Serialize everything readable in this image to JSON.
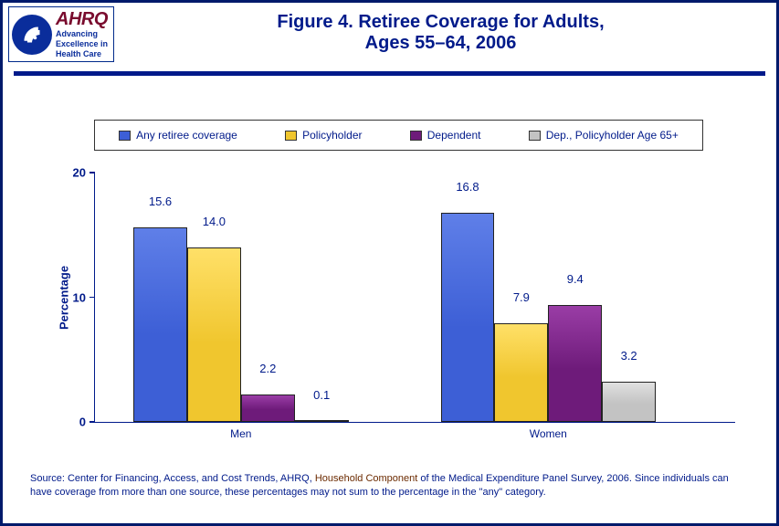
{
  "title": {
    "line1": "Figure 4. Retiree Coverage for Adults,",
    "line2": "Ages 55–64, 2006"
  },
  "logo": {
    "ahrq": "AHRQ",
    "sub1": "Advancing",
    "sub2": "Excellence in",
    "sub3": "Health Care"
  },
  "chart": {
    "type": "bar-grouped",
    "y_axis": {
      "title": "Percentage",
      "min": 0,
      "max": 20,
      "tick_step": 10,
      "ticks": [
        0,
        10,
        20
      ]
    },
    "categories": [
      "Men",
      "Women"
    ],
    "series": [
      {
        "name": "Any retiree coverage",
        "color": "#3d5fd6",
        "grad_top": "#5f7fe8",
        "values": [
          15.6,
          16.8
        ]
      },
      {
        "name": "Policyholder",
        "color": "#f0c62e",
        "grad_top": "#ffe068",
        "values": [
          14.0,
          7.9
        ]
      },
      {
        "name": "Dependent",
        "color": "#6e1b7a",
        "grad_top": "#9a3da6",
        "values": [
          2.2,
          9.4
        ]
      },
      {
        "name": "Dep., Policyholder Age 65+",
        "color": "#c3c3c3",
        "grad_top": "#e0e0e0",
        "values": [
          0.1,
          3.2
        ]
      }
    ],
    "layout": {
      "bar_width_pct": 8.4,
      "group_gap_pct": 12,
      "group_starts_pct": [
        6,
        54
      ]
    },
    "style": {
      "axis_color": "#001a8a",
      "label_fontsize": 13,
      "legend_border": "#333333",
      "background": "#ffffff"
    }
  },
  "source": {
    "pre": "Source: Center for Financing, Access, and Cost Trends, AHRQ, ",
    "hh": "Household Component",
    "post": " of the Medical Expenditure Panel Survey, 2006. Since individuals can have coverage from more than one source, these percentages may not sum to the percentage in the \"any\" category."
  }
}
